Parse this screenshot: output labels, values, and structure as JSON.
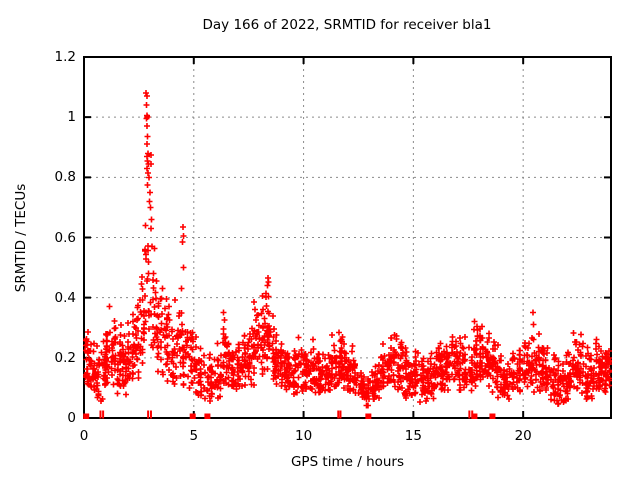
{
  "chart_data": {
    "type": "scatter",
    "title": "Day 166 of 2022, SRMTID for receiver bla1",
    "xlabel": "GPS time / hours",
    "ylabel": "SRMTID / TECUs",
    "xlim": [
      0,
      24
    ],
    "ylim": [
      0,
      1.2
    ],
    "xtick_values": [
      0,
      5,
      10,
      15,
      20
    ],
    "xtick_labels": [
      "0",
      "5",
      "10",
      "15",
      "20"
    ],
    "ytick_values": [
      0,
      0.2,
      0.4,
      0.6,
      0.8,
      1.0,
      1.2
    ],
    "ytick_labels": [
      "0",
      "0.2",
      "0.4",
      "0.6",
      "0.8",
      "1",
      "1.2"
    ],
    "grid": true,
    "legend": "none",
    "marker": "plus",
    "marker_color": "#ff0000",
    "grid_color": "#8a8a8a",
    "axis_color": "#000000",
    "background_color": "#ffffff",
    "seed": 42,
    "envelope_comment": "dense scatter summarized per 0.25h bin: [hour_center, y_min, y_max, approx_point_count]",
    "envelope": [
      [
        0.125,
        0.1,
        0.3,
        26
      ],
      [
        0.375,
        0.08,
        0.28,
        24
      ],
      [
        0.625,
        0.06,
        0.26,
        22
      ],
      [
        0.875,
        0.05,
        0.26,
        22
      ],
      [
        1.125,
        0.1,
        0.37,
        26
      ],
      [
        1.375,
        0.1,
        0.33,
        26
      ],
      [
        1.625,
        0.08,
        0.33,
        24
      ],
      [
        1.875,
        0.07,
        0.3,
        24
      ],
      [
        2.125,
        0.1,
        0.36,
        24
      ],
      [
        2.375,
        0.12,
        0.46,
        24
      ],
      [
        2.625,
        0.15,
        0.52,
        22
      ],
      [
        2.875,
        0.28,
        0.62,
        16
      ],
      [
        3.125,
        0.2,
        0.6,
        16
      ],
      [
        3.375,
        0.14,
        0.5,
        18
      ],
      [
        3.625,
        0.12,
        0.46,
        20
      ],
      [
        3.875,
        0.1,
        0.42,
        20
      ],
      [
        4.125,
        0.1,
        0.4,
        20
      ],
      [
        4.375,
        0.12,
        0.47,
        20
      ],
      [
        4.625,
        0.1,
        0.35,
        20
      ],
      [
        4.875,
        0.08,
        0.38,
        20
      ],
      [
        5.125,
        0.06,
        0.3,
        20
      ],
      [
        5.375,
        0.06,
        0.28,
        18
      ],
      [
        5.625,
        0.05,
        0.25,
        18
      ],
      [
        5.875,
        0.05,
        0.22,
        18
      ],
      [
        6.125,
        0.06,
        0.28,
        20
      ],
      [
        6.375,
        0.08,
        0.35,
        20
      ],
      [
        6.625,
        0.08,
        0.3,
        20
      ],
      [
        6.875,
        0.06,
        0.28,
        20
      ],
      [
        7.125,
        0.08,
        0.3,
        22
      ],
      [
        7.375,
        0.1,
        0.33,
        22
      ],
      [
        7.625,
        0.1,
        0.36,
        22
      ],
      [
        7.875,
        0.12,
        0.4,
        24
      ],
      [
        8.125,
        0.12,
        0.44,
        24
      ],
      [
        8.375,
        0.14,
        0.44,
        24
      ],
      [
        8.625,
        0.1,
        0.38,
        22
      ],
      [
        8.875,
        0.1,
        0.32,
        22
      ],
      [
        9.125,
        0.08,
        0.28,
        22
      ],
      [
        9.375,
        0.08,
        0.25,
        22
      ],
      [
        9.625,
        0.06,
        0.25,
        22
      ],
      [
        9.875,
        0.08,
        0.28,
        22
      ],
      [
        10.125,
        0.08,
        0.25,
        22
      ],
      [
        10.375,
        0.08,
        0.29,
        22
      ],
      [
        10.625,
        0.06,
        0.25,
        22
      ],
      [
        10.875,
        0.06,
        0.22,
        22
      ],
      [
        11.125,
        0.08,
        0.26,
        22
      ],
      [
        11.375,
        0.1,
        0.31,
        24
      ],
      [
        11.625,
        0.1,
        0.32,
        24
      ],
      [
        11.875,
        0.08,
        0.28,
        22
      ],
      [
        12.125,
        0.08,
        0.25,
        22
      ],
      [
        12.375,
        0.06,
        0.22,
        20
      ],
      [
        12.625,
        0.05,
        0.18,
        20
      ],
      [
        12.875,
        0.04,
        0.15,
        20
      ],
      [
        13.125,
        0.04,
        0.16,
        20
      ],
      [
        13.375,
        0.06,
        0.2,
        20
      ],
      [
        13.625,
        0.08,
        0.25,
        22
      ],
      [
        13.875,
        0.1,
        0.3,
        22
      ],
      [
        14.125,
        0.1,
        0.3,
        22
      ],
      [
        14.375,
        0.08,
        0.28,
        22
      ],
      [
        14.625,
        0.06,
        0.25,
        22
      ],
      [
        14.875,
        0.06,
        0.22,
        22
      ],
      [
        15.125,
        0.06,
        0.25,
        22
      ],
      [
        15.375,
        0.05,
        0.22,
        22
      ],
      [
        15.625,
        0.05,
        0.22,
        22
      ],
      [
        15.875,
        0.06,
        0.25,
        22
      ],
      [
        16.125,
        0.07,
        0.28,
        22
      ],
      [
        16.375,
        0.08,
        0.26,
        22
      ],
      [
        16.625,
        0.09,
        0.3,
        22
      ],
      [
        16.875,
        0.1,
        0.32,
        24
      ],
      [
        17.125,
        0.08,
        0.3,
        22
      ],
      [
        17.375,
        0.08,
        0.28,
        22
      ],
      [
        17.625,
        0.07,
        0.26,
        22
      ],
      [
        17.875,
        0.1,
        0.33,
        26
      ],
      [
        18.125,
        0.11,
        0.33,
        28
      ],
      [
        18.375,
        0.1,
        0.32,
        26
      ],
      [
        18.625,
        0.08,
        0.28,
        22
      ],
      [
        18.875,
        0.06,
        0.25,
        20
      ],
      [
        19.125,
        0.06,
        0.22,
        20
      ],
      [
        19.375,
        0.06,
        0.22,
        20
      ],
      [
        19.625,
        0.07,
        0.25,
        22
      ],
      [
        19.875,
        0.08,
        0.27,
        22
      ],
      [
        20.125,
        0.09,
        0.3,
        22
      ],
      [
        20.375,
        0.1,
        0.3,
        22
      ],
      [
        20.625,
        0.08,
        0.3,
        22
      ],
      [
        20.875,
        0.08,
        0.29,
        22
      ],
      [
        21.125,
        0.06,
        0.25,
        22
      ],
      [
        21.375,
        0.05,
        0.22,
        22
      ],
      [
        21.625,
        0.04,
        0.2,
        22
      ],
      [
        21.875,
        0.05,
        0.22,
        22
      ],
      [
        22.125,
        0.06,
        0.26,
        22
      ],
      [
        22.375,
        0.08,
        0.3,
        24
      ],
      [
        22.625,
        0.08,
        0.3,
        22
      ],
      [
        22.875,
        0.06,
        0.25,
        22
      ],
      [
        23.125,
        0.05,
        0.25,
        22
      ],
      [
        23.375,
        0.08,
        0.27,
        22
      ],
      [
        23.625,
        0.08,
        0.25,
        22
      ],
      [
        23.875,
        0.1,
        0.26,
        24
      ]
    ],
    "notable_points": [
      [
        2.82,
        1.08
      ],
      [
        2.86,
        1.07
      ],
      [
        2.84,
        1.04
      ],
      [
        2.86,
        1.005
      ],
      [
        2.89,
        1.0
      ],
      [
        2.84,
        0.995
      ],
      [
        2.87,
        0.97
      ],
      [
        2.9,
        0.935
      ],
      [
        2.88,
        0.91
      ],
      [
        2.92,
        0.88
      ],
      [
        2.86,
        0.87
      ],
      [
        2.9,
        0.855
      ],
      [
        2.94,
        0.845
      ],
      [
        2.88,
        0.83
      ],
      [
        2.92,
        0.815
      ],
      [
        2.96,
        0.8
      ],
      [
        2.9,
        0.775
      ],
      [
        3.0,
        0.75
      ],
      [
        2.98,
        0.72
      ],
      [
        3.04,
        0.875
      ],
      [
        3.06,
        0.845
      ],
      [
        3.02,
        0.7
      ],
      [
        3.08,
        0.66
      ],
      [
        3.05,
        0.63
      ],
      [
        3.1,
        0.57
      ],
      [
        2.8,
        0.64
      ],
      [
        2.78,
        0.56
      ],
      [
        4.5,
        0.635
      ],
      [
        4.52,
        0.605
      ],
      [
        4.48,
        0.585
      ],
      [
        4.54,
        0.5
      ],
      [
        8.38,
        0.465
      ],
      [
        8.4,
        0.452
      ],
      [
        8.35,
        0.44
      ],
      [
        20.45,
        0.35
      ],
      [
        20.47,
        0.31
      ],
      [
        6.35,
        0.35
      ],
      [
        1.15,
        0.37
      ]
    ],
    "zero_marks_comment": "red marks sitting on y=0 axis: [hour, shape] where sq=filled square, t=thin tick",
    "zero_marks": [
      [
        0.1,
        "sq"
      ],
      [
        0.75,
        "t"
      ],
      [
        0.87,
        "t"
      ],
      [
        2.92,
        "t"
      ],
      [
        3.05,
        "t"
      ],
      [
        4.95,
        "sq"
      ],
      [
        5.62,
        "sq"
      ],
      [
        11.58,
        "t"
      ],
      [
        11.68,
        "t"
      ],
      [
        12.95,
        "sq"
      ],
      [
        17.55,
        "t"
      ],
      [
        17.68,
        "t"
      ],
      [
        17.78,
        "sq"
      ],
      [
        18.6,
        "sq"
      ]
    ]
  }
}
